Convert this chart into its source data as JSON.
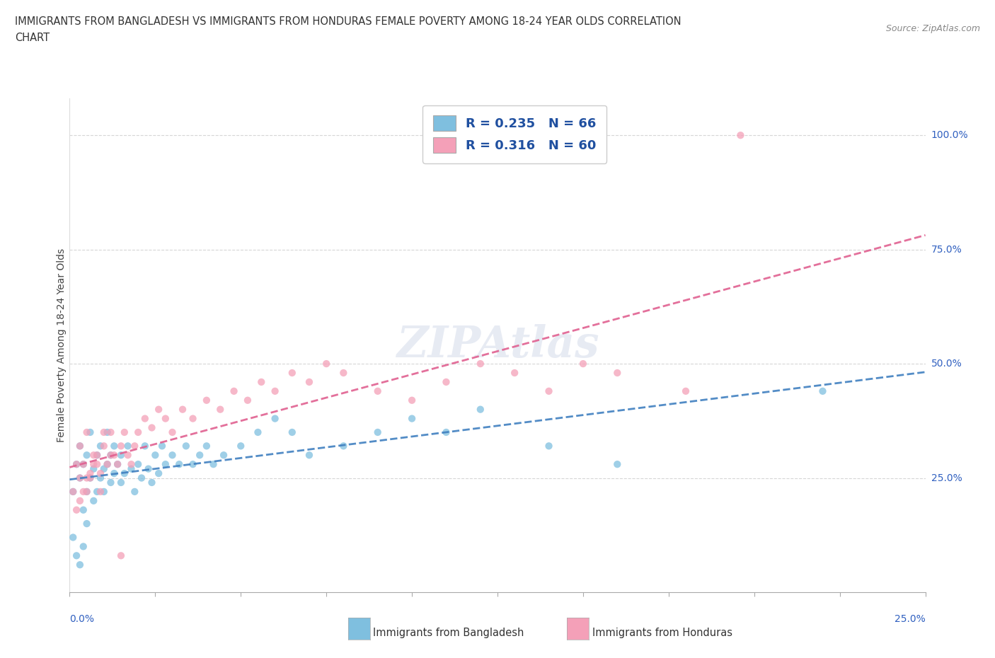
{
  "title_line1": "IMMIGRANTS FROM BANGLADESH VS IMMIGRANTS FROM HONDURAS FEMALE POVERTY AMONG 18-24 YEAR OLDS CORRELATION",
  "title_line2": "CHART",
  "source": "Source: ZipAtlas.com",
  "ylabel": "Female Poverty Among 18-24 Year Olds",
  "legend_bangladesh": "Immigrants from Bangladesh",
  "legend_honduras": "Immigrants from Honduras",
  "R_bangladesh": 0.235,
  "N_bangladesh": 66,
  "R_honduras": 0.316,
  "N_honduras": 60,
  "color_bangladesh": "#7fbfdf",
  "color_honduras": "#f4a0b8",
  "color_trendline_bangladesh": "#4080c0",
  "color_trendline_honduras": "#e06090",
  "xmin": 0.0,
  "xmax": 0.25,
  "ymin": 0.0,
  "ymax": 1.0,
  "grid_color": "#cccccc",
  "background_color": "#ffffff",
  "yticks": [
    0.25,
    0.5,
    0.75,
    1.0
  ],
  "ytick_labels": [
    "25.0%",
    "50.0%",
    "75.0%",
    "100.0%"
  ],
  "bangladesh_x": [
    0.001,
    0.002,
    0.003,
    0.003,
    0.004,
    0.004,
    0.005,
    0.005,
    0.006,
    0.006,
    0.007,
    0.007,
    0.008,
    0.008,
    0.009,
    0.009,
    0.01,
    0.01,
    0.011,
    0.011,
    0.012,
    0.012,
    0.013,
    0.013,
    0.014,
    0.015,
    0.015,
    0.016,
    0.017,
    0.018,
    0.019,
    0.02,
    0.021,
    0.022,
    0.023,
    0.024,
    0.025,
    0.026,
    0.027,
    0.028,
    0.03,
    0.032,
    0.034,
    0.036,
    0.038,
    0.04,
    0.042,
    0.045,
    0.05,
    0.055,
    0.06,
    0.065,
    0.07,
    0.08,
    0.09,
    0.1,
    0.11,
    0.12,
    0.14,
    0.16,
    0.001,
    0.002,
    0.003,
    0.004,
    0.005,
    0.22
  ],
  "bangladesh_y": [
    0.22,
    0.28,
    0.25,
    0.32,
    0.18,
    0.28,
    0.22,
    0.3,
    0.25,
    0.35,
    0.2,
    0.27,
    0.22,
    0.3,
    0.25,
    0.32,
    0.27,
    0.22,
    0.28,
    0.35,
    0.24,
    0.3,
    0.26,
    0.32,
    0.28,
    0.24,
    0.3,
    0.26,
    0.32,
    0.27,
    0.22,
    0.28,
    0.25,
    0.32,
    0.27,
    0.24,
    0.3,
    0.26,
    0.32,
    0.28,
    0.3,
    0.28,
    0.32,
    0.28,
    0.3,
    0.32,
    0.28,
    0.3,
    0.32,
    0.35,
    0.38,
    0.35,
    0.3,
    0.32,
    0.35,
    0.38,
    0.35,
    0.4,
    0.32,
    0.28,
    0.12,
    0.08,
    0.06,
    0.1,
    0.15,
    0.44
  ],
  "honduras_x": [
    0.001,
    0.002,
    0.003,
    0.003,
    0.004,
    0.005,
    0.005,
    0.006,
    0.007,
    0.008,
    0.009,
    0.01,
    0.011,
    0.012,
    0.013,
    0.014,
    0.015,
    0.016,
    0.017,
    0.018,
    0.019,
    0.02,
    0.022,
    0.024,
    0.026,
    0.028,
    0.03,
    0.033,
    0.036,
    0.04,
    0.044,
    0.048,
    0.052,
    0.056,
    0.06,
    0.065,
    0.07,
    0.075,
    0.08,
    0.09,
    0.1,
    0.11,
    0.12,
    0.13,
    0.14,
    0.15,
    0.16,
    0.18,
    0.002,
    0.003,
    0.004,
    0.005,
    0.006,
    0.007,
    0.008,
    0.009,
    0.01,
    0.012,
    0.015,
    0.196
  ],
  "honduras_y": [
    0.22,
    0.28,
    0.25,
    0.32,
    0.28,
    0.22,
    0.35,
    0.25,
    0.28,
    0.3,
    0.26,
    0.32,
    0.28,
    0.35,
    0.3,
    0.28,
    0.32,
    0.35,
    0.3,
    0.28,
    0.32,
    0.35,
    0.38,
    0.36,
    0.4,
    0.38,
    0.35,
    0.4,
    0.38,
    0.42,
    0.4,
    0.44,
    0.42,
    0.46,
    0.44,
    0.48,
    0.46,
    0.5,
    0.48,
    0.44,
    0.42,
    0.46,
    0.5,
    0.48,
    0.44,
    0.5,
    0.48,
    0.44,
    0.18,
    0.2,
    0.22,
    0.25,
    0.26,
    0.3,
    0.28,
    0.22,
    0.35,
    0.3,
    0.08,
    1.0
  ]
}
